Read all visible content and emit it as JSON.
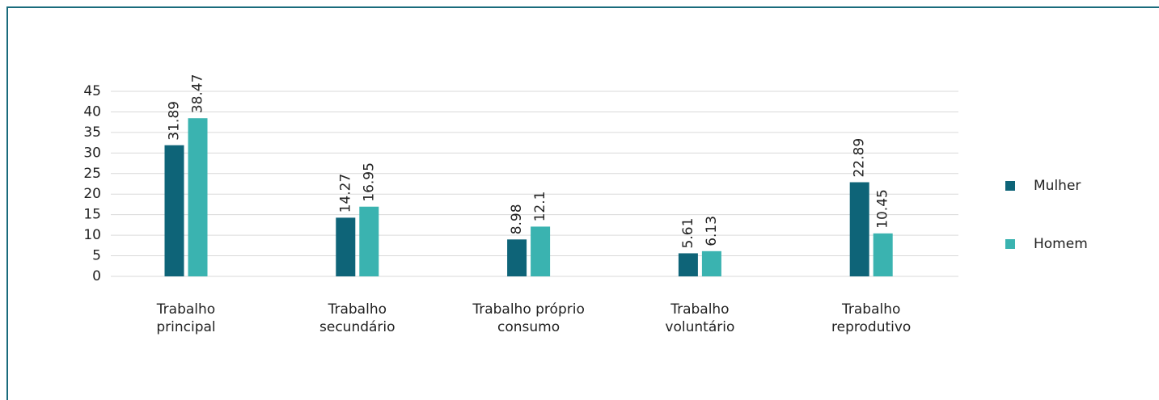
{
  "chart_data": {
    "type": "bar",
    "categories": [
      [
        "Trabalho",
        "principal"
      ],
      [
        "Trabalho",
        "secundário"
      ],
      [
        "Trabalho próprio",
        "consumo"
      ],
      [
        "Trabalho",
        "voluntário"
      ],
      [
        "Trabalho",
        "reprodutivo"
      ]
    ],
    "series": [
      {
        "name": "Mulher",
        "color": "#0e6478",
        "values": [
          31.89,
          14.27,
          8.98,
          5.61,
          22.89
        ]
      },
      {
        "name": "Homem",
        "color": "#3ab3b0",
        "values": [
          38.47,
          16.95,
          12.1,
          6.13,
          10.45
        ]
      }
    ],
    "ylim": [
      0,
      45
    ],
    "yticks": [
      0,
      5,
      10,
      15,
      20,
      25,
      30,
      35,
      40,
      45
    ],
    "grid": true,
    "legend": "right"
  }
}
